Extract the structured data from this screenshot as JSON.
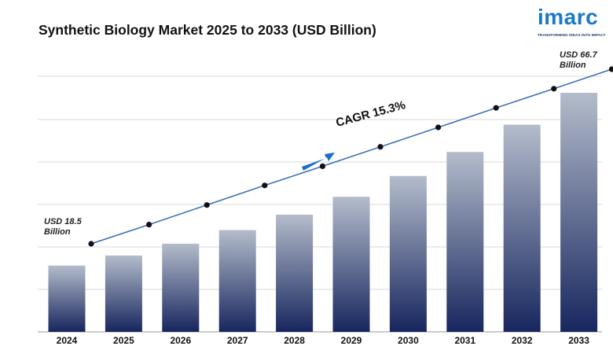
{
  "brand": {
    "name": "imarc",
    "tagline": "TRANSFORMING IDEAS INTO IMPACT",
    "color": "#1a78c9"
  },
  "chart_data": {
    "type": "bar",
    "title": "Synthetic Biology Market 2025 to 2033 (USD Billion)",
    "xlabel": "",
    "ylabel": "",
    "categories": [
      "2024",
      "2025",
      "2026",
      "2027",
      "2028",
      "2029",
      "2030",
      "2031",
      "2032",
      "2033"
    ],
    "values": [
      18.5,
      21.3,
      24.6,
      28.4,
      32.7,
      37.7,
      43.5,
      50.2,
      57.8,
      66.7
    ],
    "trend_line": [
      18.5,
      21.3,
      24.6,
      28.4,
      32.7,
      37.7,
      43.5,
      50.2,
      57.8,
      66.7
    ],
    "ylim": [
      0,
      66.7
    ],
    "grid": true,
    "legend": "none",
    "annotations": {
      "start_value": "USD 18.5",
      "start_unit": "Billion",
      "end_value": "USD 66.7",
      "end_unit": "Billion",
      "cagr": "CAGR 15.3%"
    },
    "colors": {
      "bar_top": "#b4bccb",
      "bar_bottom": "#17265e",
      "line": "#3f6fb7",
      "point": "#111111",
      "arrow": "#1c6fc4",
      "grid": "#d8d8d8"
    }
  }
}
